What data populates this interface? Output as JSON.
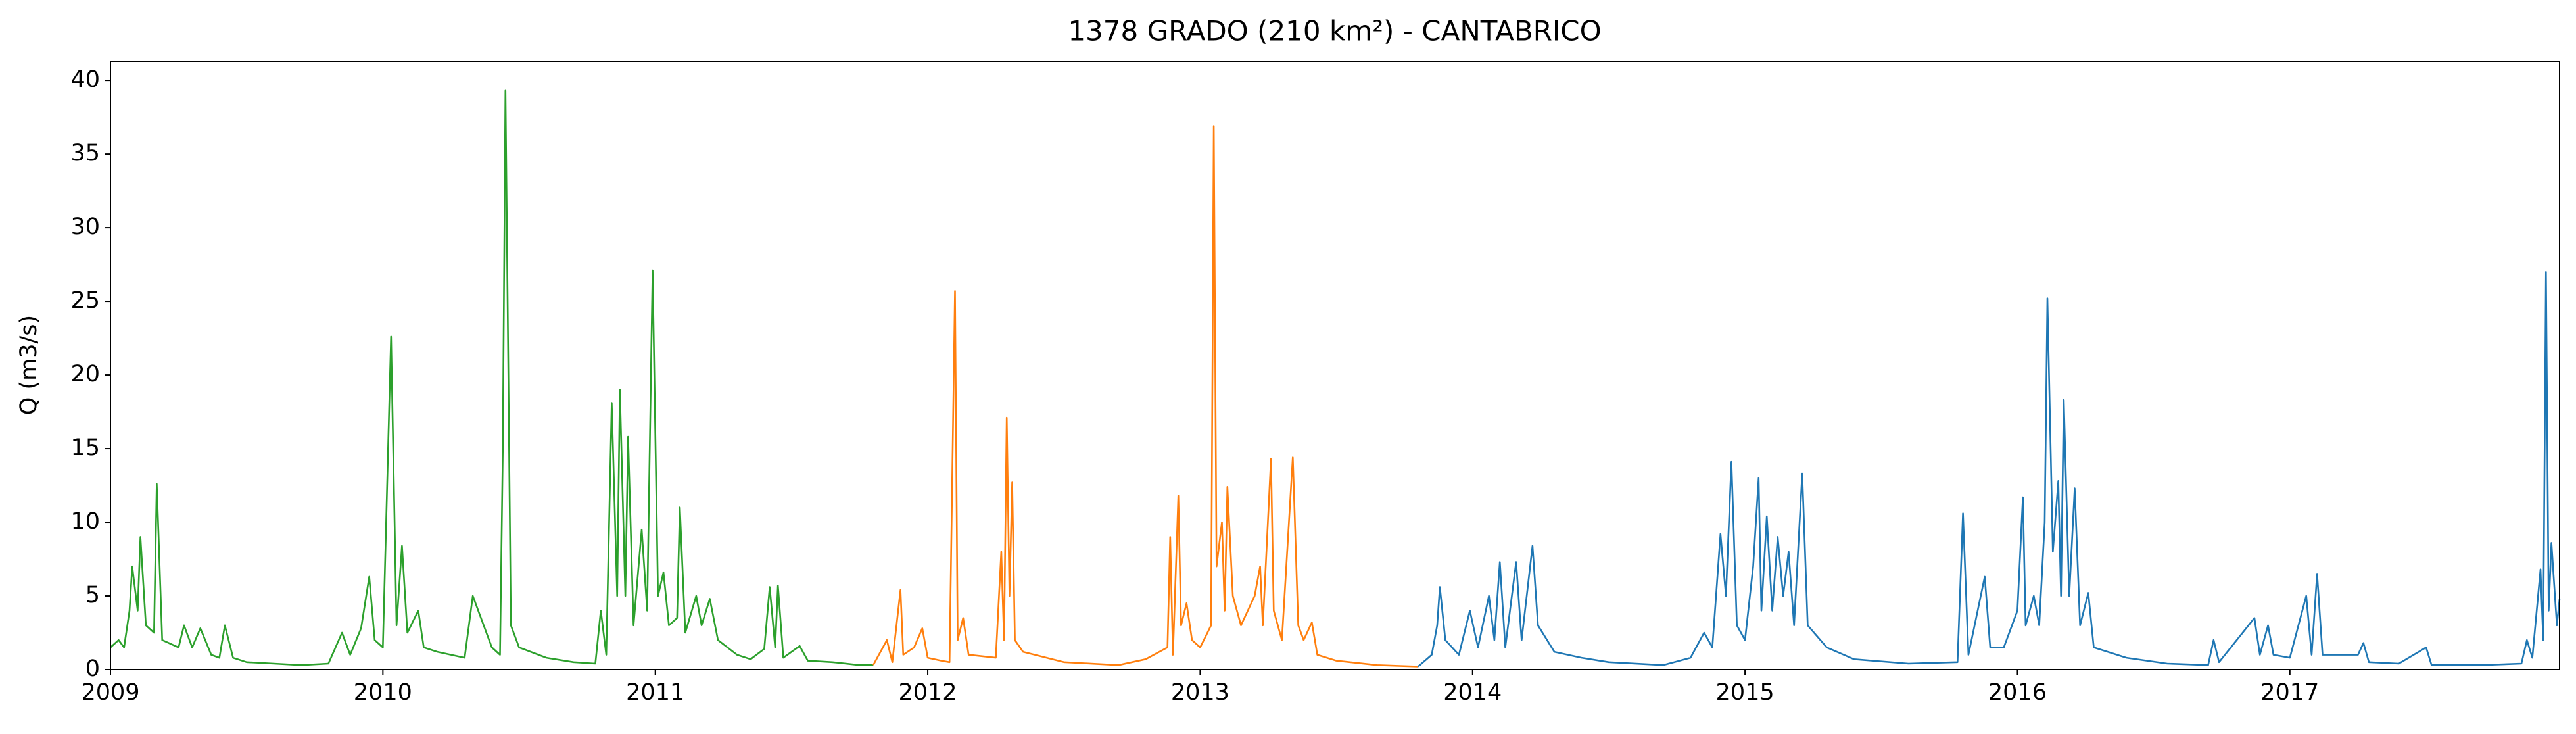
{
  "chart_data": {
    "type": "line",
    "title": "1378 GRADO (210 km²) - CANTABRICO",
    "y_label": "Q (m3/s)",
    "xlim": [
      2009,
      2017.99
    ],
    "xticks": [
      2009,
      2010,
      2011,
      2012,
      2013,
      2014,
      2015,
      2016,
      2017
    ],
    "ylim": [
      0,
      41.3
    ],
    "yticks": [
      0,
      5,
      10,
      15,
      20,
      25,
      30,
      35,
      40
    ],
    "grid": false,
    "series": [
      {
        "color": "#2ca02c",
        "x": [
          2009.0,
          2009.03,
          2009.05,
          2009.07,
          2009.08,
          2009.1,
          2009.11,
          2009.13,
          2009.16,
          2009.17,
          2009.19,
          2009.25,
          2009.27,
          2009.3,
          2009.33,
          2009.37,
          2009.4,
          2009.42,
          2009.45,
          2009.5,
          2009.6,
          2009.7,
          2009.8,
          2009.85,
          2009.88,
          2009.92,
          2009.95,
          2009.97,
          2010.0,
          2010.03,
          2010.05,
          2010.07,
          2010.09,
          2010.13,
          2010.15,
          2010.2,
          2010.3,
          2010.33,
          2010.36,
          2010.4,
          2010.43,
          2010.44,
          2010.45,
          2010.47,
          2010.5,
          2010.6,
          2010.7,
          2010.78,
          2010.8,
          2010.82,
          2010.84,
          2010.86,
          2010.87,
          2010.89,
          2010.9,
          2010.92,
          2010.95,
          2010.97,
          2010.99,
          2011.01,
          2011.03,
          2011.05,
          2011.08,
          2011.09,
          2011.11,
          2011.15,
          2011.17,
          2011.2,
          2011.23,
          2011.3,
          2011.35,
          2011.4,
          2011.42,
          2011.44,
          2011.45,
          2011.47,
          2011.53,
          2011.56,
          2011.65,
          2011.75,
          2011.8
        ],
        "values": [
          1.5,
          2,
          1.5,
          4,
          7,
          4,
          9,
          3,
          2.5,
          12.6,
          2,
          1.5,
          3,
          1.5,
          2.8,
          1,
          0.8,
          3,
          0.8,
          0.5,
          0.4,
          0.3,
          0.4,
          2.5,
          1,
          2.8,
          6.3,
          2,
          1.5,
          22.6,
          3,
          8.4,
          2.5,
          4,
          1.5,
          1.2,
          0.8,
          5,
          3.5,
          1.5,
          1,
          14.8,
          39.3,
          3,
          1.5,
          0.8,
          0.5,
          0.4,
          4,
          1,
          18.1,
          5,
          19,
          5,
          15.8,
          3,
          9.5,
          4,
          27.1,
          5,
          6.6,
          3,
          3.5,
          11,
          2.5,
          5,
          3,
          4.8,
          2,
          1,
          0.7,
          1.4,
          5.6,
          1.5,
          5.7,
          0.8,
          1.6,
          0.6,
          0.5,
          0.3,
          0.3
        ]
      },
      {
        "color": "#ff7f0e",
        "x": [
          2011.8,
          2011.85,
          2011.87,
          2011.9,
          2011.91,
          2011.95,
          2011.98,
          2012.0,
          2012.05,
          2012.08,
          2012.1,
          2012.11,
          2012.13,
          2012.15,
          2012.25,
          2012.27,
          2012.28,
          2012.29,
          2012.3,
          2012.31,
          2012.32,
          2012.35,
          2012.5,
          2012.7,
          2012.8,
          2012.88,
          2012.89,
          2012.9,
          2012.92,
          2012.93,
          2012.95,
          2012.97,
          2013.0,
          2013.04,
          2013.05,
          2013.06,
          2013.08,
          2013.09,
          2013.1,
          2013.12,
          2013.15,
          2013.2,
          2013.22,
          2013.23,
          2013.26,
          2013.27,
          2013.3,
          2013.34,
          2013.36,
          2013.38,
          2013.41,
          2013.43,
          2013.5,
          2013.65,
          2013.8
        ],
        "values": [
          0.3,
          2,
          0.5,
          5.4,
          1,
          1.5,
          2.8,
          0.8,
          0.6,
          0.5,
          25.7,
          2,
          3.5,
          1,
          0.8,
          8,
          2,
          17.1,
          5,
          12.7,
          2,
          1.2,
          0.5,
          0.3,
          0.7,
          1.5,
          9,
          1,
          11.8,
          3,
          4.5,
          2,
          1.5,
          3,
          36.9,
          7,
          10,
          4,
          12.4,
          5,
          3,
          5,
          7,
          3,
          14.3,
          4,
          2,
          14.4,
          3,
          2,
          3.2,
          1,
          0.6,
          0.3,
          0.2
        ]
      },
      {
        "color": "#1f77b4",
        "x": [
          2013.8,
          2013.85,
          2013.87,
          2013.88,
          2013.9,
          2013.95,
          2013.99,
          2014.02,
          2014.06,
          2014.08,
          2014.1,
          2014.12,
          2014.16,
          2014.18,
          2014.22,
          2014.24,
          2014.3,
          2014.4,
          2014.5,
          2014.7,
          2014.8,
          2014.85,
          2014.88,
          2014.91,
          2014.93,
          2014.95,
          2014.97,
          2015.0,
          2015.03,
          2015.05,
          2015.06,
          2015.08,
          2015.1,
          2015.12,
          2015.14,
          2015.16,
          2015.18,
          2015.21,
          2015.23,
          2015.3,
          2015.4,
          2015.6,
          2015.78,
          2015.8,
          2015.82,
          2015.88,
          2015.9,
          2015.95,
          2016.0,
          2016.02,
          2016.03,
          2016.06,
          2016.08,
          2016.1,
          2016.11,
          2016.13,
          2016.15,
          2016.16,
          2016.17,
          2016.19,
          2016.21,
          2016.23,
          2016.26,
          2016.28,
          2016.4,
          2016.55,
          2016.7,
          2016.72,
          2016.74,
          2016.87,
          2016.89,
          2016.92,
          2016.94,
          2017.0,
          2017.06,
          2017.08,
          2017.1,
          2017.12,
          2017.25,
          2017.27,
          2017.29,
          2017.4,
          2017.5,
          2017.52,
          2017.7,
          2017.85,
          2017.87,
          2017.89,
          2017.92,
          2017.93,
          2017.94,
          2017.95,
          2017.96,
          2017.98,
          2017.99
        ],
        "values": [
          0.2,
          1,
          3,
          5.6,
          2,
          1,
          4,
          1.5,
          5,
          2,
          7.3,
          1.5,
          7.3,
          2,
          8.4,
          3,
          1.2,
          0.8,
          0.5,
          0.3,
          0.8,
          2.5,
          1.5,
          9.2,
          5,
          14.1,
          3,
          2,
          7,
          13,
          4,
          10.4,
          4,
          9,
          5,
          8,
          3,
          13.3,
          3,
          1.5,
          0.7,
          0.4,
          0.5,
          10.6,
          1,
          6.3,
          1.5,
          1.5,
          4,
          11.7,
          3,
          5,
          3,
          10,
          25.2,
          8,
          12.8,
          5,
          18.3,
          5,
          12.3,
          3,
          5.2,
          1.5,
          0.8,
          0.4,
          0.3,
          2,
          0.5,
          3.5,
          1,
          3,
          1,
          0.8,
          5,
          1,
          6.5,
          1,
          1,
          1.8,
          0.5,
          0.4,
          1.5,
          0.3,
          0.3,
          0.4,
          2,
          0.8,
          6.8,
          2,
          27,
          4,
          8.6,
          3,
          4.8
        ]
      }
    ]
  }
}
